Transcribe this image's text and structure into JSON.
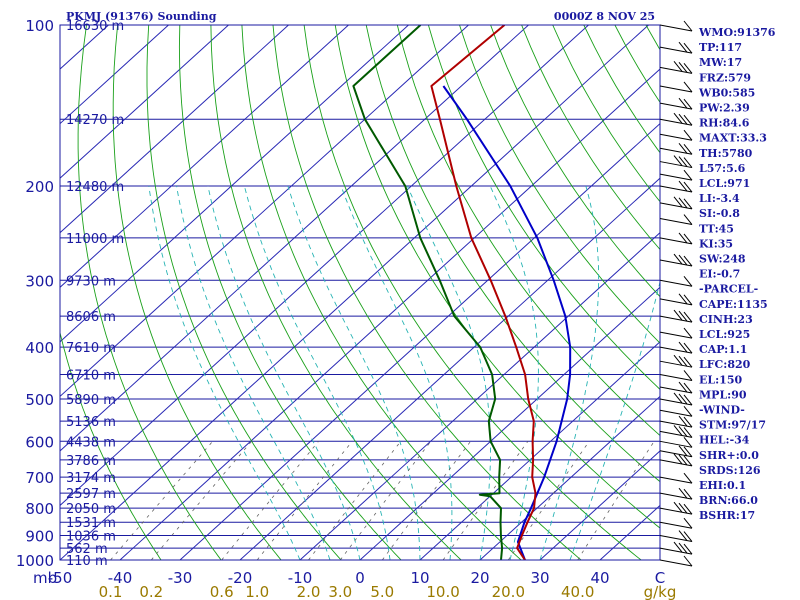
{
  "chart_data": {
    "type": "skew-t",
    "title": "PKMJ (91376) Sounding",
    "time_label": "0000Z  8 NOV 25",
    "pressure_ticks": [
      "100",
      "200",
      "300",
      "400",
      "500",
      "600",
      "700",
      "800",
      "900",
      "1000"
    ],
    "pressure_unit": "mb",
    "temperature_ticks": [
      "-50",
      "-40",
      "-30",
      "-20",
      "-10",
      "0",
      "10",
      "20",
      "30",
      "40",
      "C"
    ],
    "temperature_values": [
      -50,
      -40,
      -30,
      -20,
      -10,
      0,
      10,
      20,
      30,
      40
    ],
    "mixing_ratio_ticks": [
      "0.1",
      "0.2",
      "0.6",
      "1.0",
      "2.0",
      "3.0",
      "5.0",
      "10.0",
      "20.0",
      "40.0",
      "g/kg"
    ],
    "height_labels": [
      {
        "p": 100,
        "text": "16630 m"
      },
      {
        "p": 150,
        "text": "14270 m"
      },
      {
        "p": 200,
        "text": "12480 m"
      },
      {
        "p": 250,
        "text": "11000 m"
      },
      {
        "p": 300,
        "text": "9730 m"
      },
      {
        "p": 350,
        "text": "8606 m"
      },
      {
        "p": 400,
        "text": "7610 m"
      },
      {
        "p": 450,
        "text": "6710 m"
      },
      {
        "p": 500,
        "text": "5890 m"
      },
      {
        "p": 550,
        "text": "5136 m"
      },
      {
        "p": 600,
        "text": "4438 m"
      },
      {
        "p": 650,
        "text": "3786 m"
      },
      {
        "p": 700,
        "text": "3174 m"
      },
      {
        "p": 750,
        "text": "2597 m"
      },
      {
        "p": 800,
        "text": "2050 m"
      },
      {
        "p": 850,
        "text": "1531 m"
      },
      {
        "p": 900,
        "text": "1036 m"
      },
      {
        "p": 950,
        "text": "562 m"
      },
      {
        "p": 1000,
        "text": "110 m"
      }
    ],
    "temperature_profile": [
      {
        "p": 1000,
        "t": 27.5
      },
      {
        "p": 950,
        "t": 24.0
      },
      {
        "p": 900,
        "t": 22.5
      },
      {
        "p": 850,
        "t": 21.0
      },
      {
        "p": 800,
        "t": 19.5
      },
      {
        "p": 750,
        "t": 17.0
      },
      {
        "p": 700,
        "t": 13.5
      },
      {
        "p": 650,
        "t": 10.5
      },
      {
        "p": 600,
        "t": 7.0
      },
      {
        "p": 550,
        "t": 3.5
      },
      {
        "p": 500,
        "t": -1.5
      },
      {
        "p": 450,
        "t": -6.5
      },
      {
        "p": 400,
        "t": -13.0
      },
      {
        "p": 350,
        "t": -20.5
      },
      {
        "p": 300,
        "t": -29.5
      },
      {
        "p": 250,
        "t": -40.5
      },
      {
        "p": 200,
        "t": -52.5
      },
      {
        "p": 150,
        "t": -67.5
      },
      {
        "p": 130,
        "t": -75.0
      },
      {
        "p": 100,
        "t": -74.0
      }
    ],
    "dewpoint_profile": [
      {
        "p": 1000,
        "t": 23.5
      },
      {
        "p": 950,
        "t": 21.5
      },
      {
        "p": 900,
        "t": 19.0
      },
      {
        "p": 850,
        "t": 16.5
      },
      {
        "p": 800,
        "t": 14.0
      },
      {
        "p": 760,
        "t": 10.0
      },
      {
        "p": 755,
        "t": 8.0
      },
      {
        "p": 750,
        "t": 11.0
      },
      {
        "p": 700,
        "t": 8.0
      },
      {
        "p": 650,
        "t": 5.0
      },
      {
        "p": 600,
        "t": 0.0
      },
      {
        "p": 550,
        "t": -4.0
      },
      {
        "p": 500,
        "t": -7.0
      },
      {
        "p": 450,
        "t": -12.0
      },
      {
        "p": 400,
        "t": -19.0
      },
      {
        "p": 350,
        "t": -29.0
      },
      {
        "p": 300,
        "t": -38.0
      },
      {
        "p": 250,
        "t": -49.0
      },
      {
        "p": 200,
        "t": -61.0
      },
      {
        "p": 150,
        "t": -80.0
      },
      {
        "p": 130,
        "t": -88.0
      },
      {
        "p": 100,
        "t": -88.0
      }
    ],
    "parcel_profile": [
      {
        "p": 1000,
        "t": 27.5
      },
      {
        "p": 925,
        "t": 23.0
      },
      {
        "p": 850,
        "t": 20.5
      },
      {
        "p": 800,
        "t": 19.0
      },
      {
        "p": 700,
        "t": 15.5
      },
      {
        "p": 600,
        "t": 11.0
      },
      {
        "p": 500,
        "t": 5.0
      },
      {
        "p": 450,
        "t": 1.0
      },
      {
        "p": 400,
        "t": -4.0
      },
      {
        "p": 350,
        "t": -10.5
      },
      {
        "p": 300,
        "t": -19.0
      },
      {
        "p": 250,
        "t": -29.5
      },
      {
        "p": 200,
        "t": -43.5
      },
      {
        "p": 150,
        "t": -63.0
      },
      {
        "p": 130,
        "t": -73.0
      }
    ],
    "axis": {
      "p_top": 100,
      "p_bottom": 1000,
      "t_at_left_bottom": -50,
      "t_at_right_bottom": 50
    }
  },
  "indices": [
    "WMO:91376",
    "TP:117",
    "MW:17",
    "FRZ:579",
    "WB0:585",
    "PW:2.39",
    "RH:84.6",
    "MAXT:33.3",
    "TH:5780",
    "L57:5.6",
    "LCL:971",
    "LI:-3.4",
    "SI:-0.8",
    "TT:45",
    "KI:35",
    "SW:248",
    "EI:-0.7",
    "-PARCEL-",
    "CAPE:1135",
    "CINH:23",
    "LCL:925",
    "CAP:1.1",
    "LFC:820",
    "EL:150",
    "MPL:90",
    "-WIND-",
    "STM:97/17",
    "HEL:-34",
    "SHR+:0.0",
    "SRDS:126",
    "EHI:0.1",
    "BRN:66.0",
    "BSHR:17"
  ],
  "colors": {
    "isobar": "#1a1aa0",
    "isotherm": "#2828b4",
    "dry_adiabat": "#1aa01a",
    "moist_adiabat": "#28b4b4",
    "mixing_ratio": "#646464",
    "temperature": "#b00000",
    "dewpoint": "#005a00",
    "parcel": "#0000c8",
    "header": "#1a1aa0",
    "mixing_label": "#9a7a00"
  }
}
